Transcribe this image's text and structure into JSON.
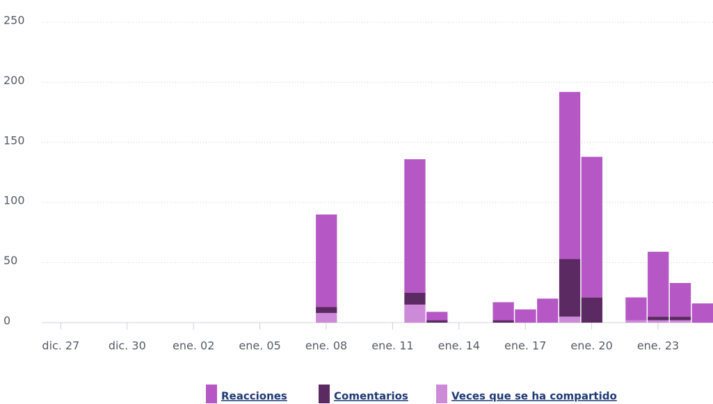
{
  "chart_data": {
    "type": "bar",
    "stacked": true,
    "categories": [
      "dic. 27",
      null,
      null,
      "dic. 30",
      null,
      null,
      "ene. 02",
      null,
      null,
      "ene. 05",
      null,
      null,
      "ene. 08",
      null,
      null,
      "ene. 11",
      null,
      null,
      "ene. 14",
      null,
      null,
      "ene. 17",
      null,
      null,
      "ene. 20",
      null,
      null,
      "ene. 23",
      null,
      null
    ],
    "series": [
      {
        "name": "Reacciones",
        "color": "#b557c4",
        "values": [
          0,
          0,
          0,
          0,
          0,
          0,
          0,
          0,
          0,
          0,
          0,
          0,
          77,
          0,
          0,
          0,
          111,
          7,
          0,
          0,
          15,
          11,
          20,
          139,
          117,
          0,
          19,
          54,
          28,
          16
        ]
      },
      {
        "name": "Comentarios",
        "color": "#5c2a63",
        "values": [
          0,
          0,
          0,
          0,
          0,
          0,
          0,
          0,
          0,
          0,
          0,
          0,
          5,
          0,
          0,
          0,
          10,
          2,
          0,
          0,
          2,
          0,
          0,
          48,
          21,
          0,
          0,
          3,
          3,
          0
        ]
      },
      {
        "name": "Veces que se ha compartido",
        "color": "#cd8ad8",
        "values": [
          0,
          0,
          0,
          0,
          0,
          0,
          0,
          0,
          0,
          0,
          0,
          0,
          8,
          0,
          0,
          0,
          15,
          0,
          0,
          0,
          0,
          0,
          0,
          5,
          0,
          0,
          2,
          2,
          2,
          0
        ]
      }
    ],
    "ylim": [
      0,
      250
    ],
    "yticks": [
      0,
      50,
      100,
      150,
      200,
      250
    ],
    "grid": true,
    "legend": "bottom"
  }
}
